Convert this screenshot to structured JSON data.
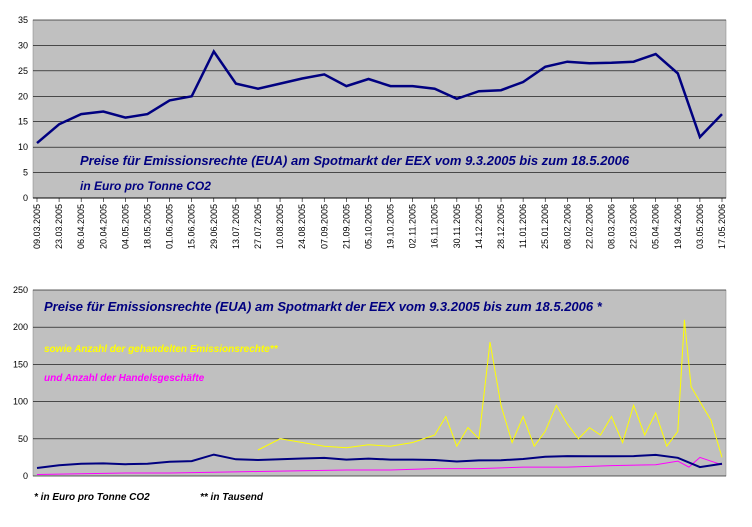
{
  "colors": {
    "plot_bg": "#c0c0c0",
    "price_line": "#000080",
    "volume_line": "#ffff00",
    "trades_line": "#ff00ff",
    "title_text": "#000080"
  },
  "chart_data": [
    {
      "type": "line",
      "title": "Preise für Emissionsrechte (EUA) am Spotmarkt der EEX vom 9.3.2005 bis zum 18.5.2006",
      "subtitle": "in Euro pro Tonne CO2",
      "ylim": [
        0,
        35
      ],
      "yticks": [
        "0",
        "5",
        "10",
        "15",
        "20",
        "25",
        "30",
        "35"
      ],
      "xticks": [
        "09.03.2005",
        "23.03.2005",
        "06.04.2005",
        "20.04.2005",
        "04.05.2005",
        "18.05.2005",
        "01.06.2005",
        "15.06.2005",
        "29.06.2005",
        "13.07.2005",
        "27.07.2005",
        "10.08.2005",
        "24.08.2005",
        "07.09.2005",
        "21.09.2005",
        "05.10.2005",
        "19.10.2005",
        "02.11.2005",
        "16.11.2005",
        "30.11.2005",
        "14.12.2005",
        "28.12.2005",
        "11.01.2006",
        "25.01.2006",
        "08.02.2006",
        "22.02.2006",
        "08.03.2006",
        "22.03.2006",
        "05.04.2006",
        "19.04.2006",
        "03.05.2006",
        "17.05.2006"
      ],
      "grid": true,
      "series": [
        {
          "x": [
            0,
            1,
            2,
            3,
            4,
            5,
            6,
            7,
            8,
            9,
            10,
            11,
            12,
            13,
            14,
            15,
            16,
            17,
            18,
            19,
            20,
            21,
            22,
            23,
            24,
            25,
            26,
            27,
            28,
            29,
            30,
            31
          ],
          "values": [
            10.8,
            14.5,
            16.5,
            17.0,
            15.8,
            16.5,
            19.2,
            20.0,
            28.8,
            22.5,
            21.5,
            22.5,
            23.5,
            24.3,
            22.0,
            23.4,
            22.0,
            22.0,
            21.5,
            19.5,
            21.0,
            21.2,
            22.8,
            25.8,
            26.8,
            26.5,
            26.6,
            26.8,
            28.3,
            24.5,
            12.0,
            16.5
          ]
        }
      ]
    },
    {
      "type": "line",
      "title": "Preise für Emissionsrechte (EUA) am Spotmarkt der EEX vom 9.3.2005 bis zum 18.5.2006 *",
      "ylim": [
        0,
        250
      ],
      "yticks": [
        "0",
        "50",
        "100",
        "150",
        "200",
        "250"
      ],
      "grid": true,
      "series": [
        {
          "name": "Preise für Emissionsrechte (EUA) am Spotmarkt der EEX vom 9.3.2005 bis zum 18.5.2006 *",
          "x": [
            0,
            1,
            2,
            3,
            4,
            5,
            6,
            7,
            8,
            9,
            10,
            11,
            12,
            13,
            14,
            15,
            16,
            17,
            18,
            19,
            20,
            21,
            22,
            23,
            24,
            25,
            26,
            27,
            28,
            29,
            30,
            31
          ],
          "values": [
            10.8,
            14.5,
            16.5,
            17.0,
            15.8,
            16.5,
            19.2,
            20.0,
            28.8,
            22.5,
            21.5,
            22.5,
            23.5,
            24.3,
            22.0,
            23.4,
            22.0,
            22.0,
            21.5,
            19.5,
            21.0,
            21.2,
            22.8,
            25.8,
            26.8,
            26.5,
            26.6,
            26.8,
            28.3,
            24.5,
            12.0,
            16.5
          ]
        },
        {
          "name": "sowie Anzahl der gehandelten Emissionsrechte**",
          "x": [
            10,
            11,
            12,
            13,
            14,
            15,
            16,
            17,
            18,
            18.5,
            19,
            19.5,
            20,
            20.5,
            21,
            21.5,
            22,
            22.5,
            23,
            23.5,
            24,
            24.5,
            25,
            25.5,
            26,
            26.5,
            27,
            27.5,
            28,
            28.5,
            29,
            29.3,
            29.6,
            30,
            30.5,
            31
          ],
          "values": [
            35,
            50,
            45,
            40,
            38,
            42,
            40,
            45,
            55,
            80,
            40,
            65,
            50,
            180,
            95,
            45,
            80,
            40,
            60,
            95,
            70,
            50,
            65,
            55,
            80,
            45,
            95,
            55,
            85,
            40,
            60,
            210,
            120,
            100,
            75,
            25
          ]
        },
        {
          "name": "und Anzahl der Handelsgeschäfte",
          "x": [
            0,
            2,
            4,
            6,
            8,
            10,
            12,
            14,
            16,
            18,
            20,
            22,
            24,
            26,
            28,
            29,
            29.5,
            30,
            31
          ],
          "values": [
            2,
            3,
            4,
            4,
            5,
            6,
            7,
            8,
            8,
            10,
            10,
            12,
            12,
            14,
            15,
            20,
            12,
            25,
            15
          ]
        }
      ]
    }
  ],
  "footnotes": {
    "unit_price": "* in Euro pro Tonne CO2",
    "unit_volume": "** in Tausend"
  }
}
